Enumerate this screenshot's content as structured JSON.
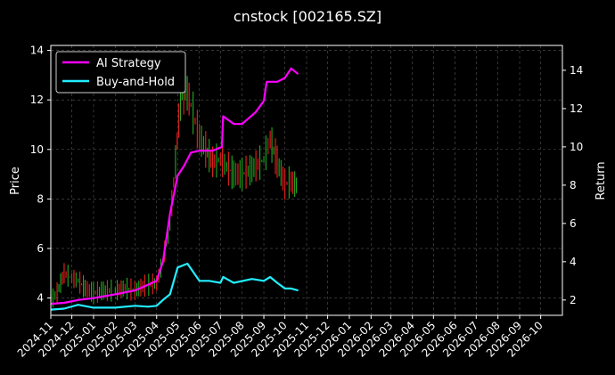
{
  "chart_data": {
    "type": "line",
    "title": "cnstock [002165.SZ]",
    "ylabel_left": "Price",
    "ylabel_right": "Return",
    "x_tick_labels": [
      "2024-11",
      "2024-12",
      "2025-01",
      "2025-02",
      "2025-03",
      "2025-04",
      "2025-05",
      "2025-06",
      "2025-07",
      "2025-08",
      "2025-09",
      "2025-10",
      "2025-11",
      "2025-12",
      "2026-01",
      "2026-02",
      "2026-03",
      "2026-04",
      "2026-05",
      "2026-06",
      "2026-07",
      "2026-08",
      "2026-09",
      "2026-10"
    ],
    "xlim": [
      "2024-11-01",
      "2026-11-01"
    ],
    "ylim_left": [
      3.3,
      14.2
    ],
    "ylim_right": [
      1.2,
      15.3
    ],
    "left_ticks": [
      4,
      6,
      8,
      10,
      12,
      14
    ],
    "right_ticks": [
      2,
      4,
      6,
      8,
      10,
      12,
      14
    ],
    "grid": true,
    "legend_position": "top-left",
    "series": [
      {
        "name": "AI Strategy",
        "color": "#ff00ff",
        "axis": "right",
        "x": [
          "2024-11-01",
          "2024-11-20",
          "2024-12-10",
          "2025-01-01",
          "2025-02-01",
          "2025-03-01",
          "2025-03-20",
          "2025-04-01",
          "2025-04-10",
          "2025-04-20",
          "2025-05-01",
          "2025-05-10",
          "2025-05-20",
          "2025-06-01",
          "2025-06-20",
          "2025-07-03",
          "2025-07-05",
          "2025-07-20",
          "2025-08-01",
          "2025-08-20",
          "2025-09-01",
          "2025-09-05",
          "2025-09-20",
          "2025-10-01",
          "2025-10-10",
          "2025-10-20"
        ],
        "values": [
          1.8,
          1.85,
          2.0,
          2.1,
          2.3,
          2.5,
          2.8,
          3.0,
          4.0,
          6.5,
          8.5,
          9.0,
          9.7,
          9.8,
          9.8,
          10.0,
          11.6,
          11.2,
          11.2,
          11.8,
          12.4,
          13.4,
          13.4,
          13.6,
          14.1,
          13.8
        ]
      },
      {
        "name": "Buy-and-Hold",
        "color": "#22eeff",
        "axis": "right",
        "x": [
          "2024-11-01",
          "2024-11-20",
          "2024-12-10",
          "2025-01-01",
          "2025-02-01",
          "2025-03-01",
          "2025-03-20",
          "2025-04-01",
          "2025-04-10",
          "2025-04-20",
          "2025-05-01",
          "2025-05-15",
          "2025-06-01",
          "2025-06-15",
          "2025-07-01",
          "2025-07-05",
          "2025-07-20",
          "2025-08-15",
          "2025-09-01",
          "2025-09-10",
          "2025-09-20",
          "2025-10-01",
          "2025-10-10",
          "2025-10-20"
        ],
        "values": [
          1.5,
          1.55,
          1.75,
          1.6,
          1.6,
          1.7,
          1.65,
          1.7,
          2.0,
          2.3,
          3.7,
          3.9,
          3.0,
          3.0,
          2.9,
          3.2,
          2.9,
          3.1,
          3.0,
          3.2,
          2.9,
          2.6,
          2.6,
          2.5
        ]
      },
      {
        "name": "price",
        "type": "candles",
        "color_up": "#22aa22",
        "color_down": "#ee2222",
        "axis": "left",
        "x": [
          "2024-11-01",
          "2024-11-10",
          "2024-11-20",
          "2024-12-01",
          "2024-12-10",
          "2024-12-20",
          "2025-01-01",
          "2025-01-15",
          "2025-02-01",
          "2025-02-15",
          "2025-03-01",
          "2025-03-15",
          "2025-04-01",
          "2025-04-10",
          "2025-04-20",
          "2025-04-28",
          "2025-05-05",
          "2025-05-12",
          "2025-05-20",
          "2025-06-01",
          "2025-06-10",
          "2025-06-20",
          "2025-07-01",
          "2025-07-10",
          "2025-07-20",
          "2025-08-01",
          "2025-08-15",
          "2025-09-01",
          "2025-09-10",
          "2025-09-20",
          "2025-10-01",
          "2025-10-10",
          "2025-10-20"
        ],
        "values": [
          3.9,
          4.2,
          5.0,
          4.8,
          4.7,
          4.4,
          4.2,
          4.3,
          4.3,
          4.4,
          4.3,
          4.5,
          4.6,
          5.5,
          7.0,
          9.5,
          12.0,
          12.5,
          11.8,
          10.5,
          10.0,
          9.5,
          9.6,
          9.3,
          9.0,
          9.0,
          9.2,
          9.6,
          10.4,
          9.5,
          8.6,
          8.7,
          8.5
        ]
      }
    ]
  },
  "legend": {
    "items": [
      {
        "label": "AI Strategy",
        "color": "#ff00ff"
      },
      {
        "label": "Buy-and-Hold",
        "color": "#22eeff"
      }
    ]
  }
}
